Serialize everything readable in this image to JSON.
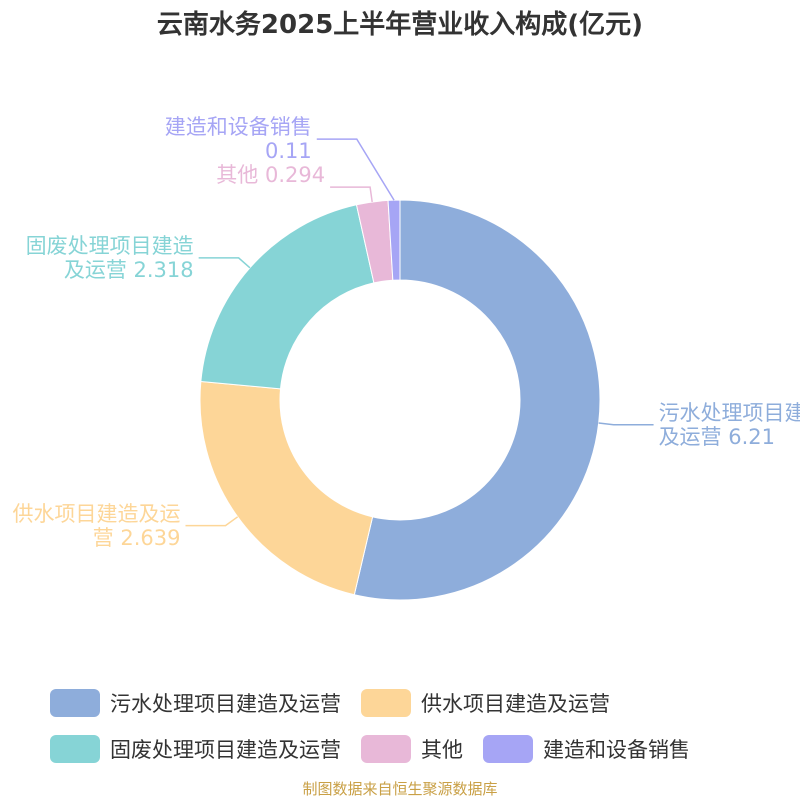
{
  "chart_data": {
    "type": "pie",
    "donut": true,
    "title": "云南水务2025上半年营业收入构成(亿元)",
    "categories": [
      "污水处理项目建造及运营",
      "供水项目建造及运营",
      "固废处理项目建造及运营",
      "其他",
      "建造和设备销售"
    ],
    "values": [
      6.21,
      2.639,
      2.318,
      0.294,
      0.11
    ],
    "colors": [
      "#8eaddb",
      "#fdd698",
      "#86d4d6",
      "#e8b8d8",
      "#a6a5f5"
    ],
    "source": "制图数据来自恒生聚源数据库"
  }
}
